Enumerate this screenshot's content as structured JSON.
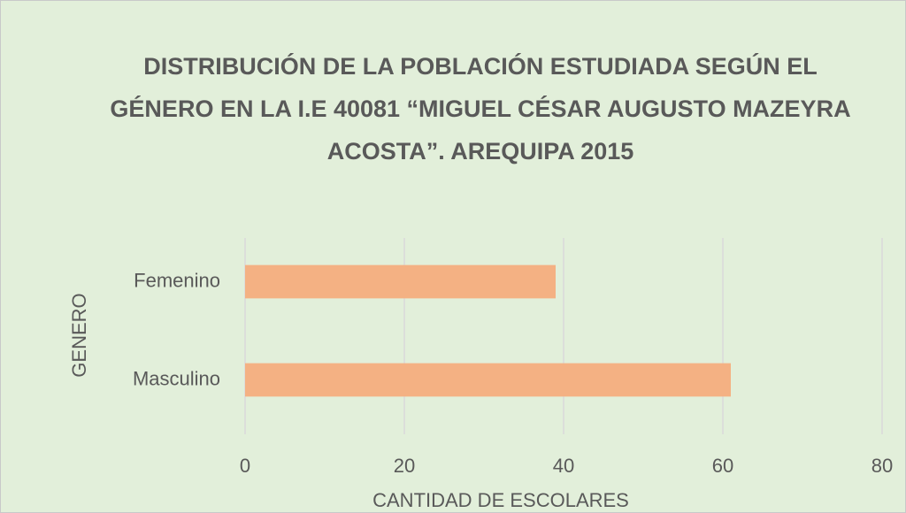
{
  "chart_data": {
    "type": "barh",
    "title": "DISTRIBUCIÓN DE LA POBLACIÓN ESTUDIADA SEGÚN EL GÉNERO EN LA I.E 40081 “MIGUEL CÉSAR AUGUSTO MAZEYRA ACOSTA”. AREQUIPA 2015",
    "categories": [
      "Femenino",
      "Masculino"
    ],
    "values": [
      39,
      61
    ],
    "color": "#f4b183",
    "xlim": [
      0,
      80
    ],
    "xticks": [
      0,
      20,
      40,
      60,
      80
    ],
    "grid": true,
    "xlabel": "CANTIDAD DE ESCOLARES",
    "ylabel": "GENERO"
  }
}
